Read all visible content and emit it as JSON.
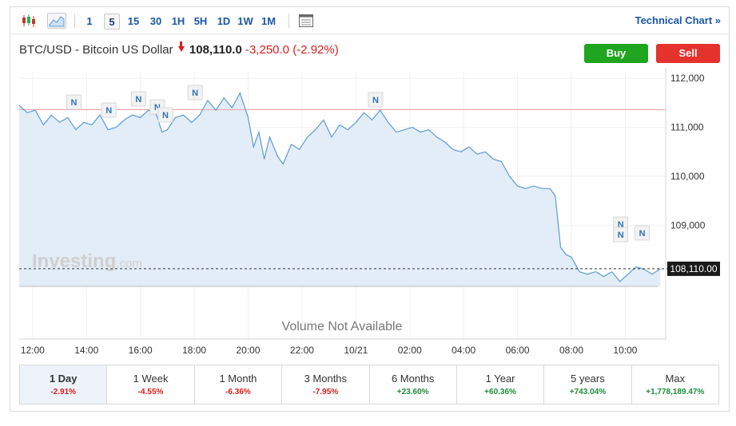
{
  "toolbar": {
    "timeframes": [
      "1",
      "5",
      "15",
      "30",
      "1H",
      "5H",
      "1D",
      "1W",
      "1M"
    ],
    "active_timeframe": "5",
    "technical_chart_label": "Technical Chart »",
    "icons": [
      "candlestick-icon",
      "area-chart-icon",
      "table-icon"
    ]
  },
  "header": {
    "instrument": "BTC/USD - Bitcoin US Dollar",
    "price": "108,110.0",
    "change": "-3,250.0",
    "change_pct": "(-2.92%)",
    "buy_label": "Buy",
    "sell_label": "Sell"
  },
  "watermark": {
    "brand": "Investing",
    "suffix": ".com"
  },
  "volume_note": "Volume Not Available",
  "colors": {
    "line": "#5b9bd5",
    "fill": "#e3edf7",
    "buy": "#1fa51f",
    "sell": "#e5322d",
    "down": "#d91c1c",
    "up": "#1d8c3a",
    "refline": "#f2a0a0"
  },
  "chart_data": {
    "type": "area",
    "ylim": [
      107750,
      112150
    ],
    "y_ticks": [
      "112,000",
      "111,000",
      "110,000",
      "109,000"
    ],
    "y_tick_values": [
      112000,
      111000,
      110000,
      109000
    ],
    "x_ticks": [
      "12:00",
      "14:00",
      "16:00",
      "18:00",
      "20:00",
      "22:00",
      "10/21",
      "02:00",
      "04:00",
      "06:00",
      "08:00",
      "10:00"
    ],
    "x_tick_values": [
      12,
      14,
      16,
      18,
      20,
      22,
      24,
      26,
      28,
      30,
      32,
      34
    ],
    "xlim": [
      11.5,
      35.5
    ],
    "previous_close": 111360,
    "last_price": 108110,
    "last_price_label": "108,110.00",
    "series": [
      {
        "values": [
          [
            11.5,
            111450
          ],
          [
            11.8,
            111300
          ],
          [
            12.1,
            111350
          ],
          [
            12.4,
            111050
          ],
          [
            12.7,
            111250
          ],
          [
            13.0,
            111100
          ],
          [
            13.3,
            111200
          ],
          [
            13.6,
            110950
          ],
          [
            13.9,
            111100
          ],
          [
            14.2,
            111050
          ],
          [
            14.5,
            111250
          ],
          [
            14.8,
            110950
          ],
          [
            15.1,
            111000
          ],
          [
            15.4,
            111150
          ],
          [
            15.7,
            111250
          ],
          [
            16.0,
            111200
          ],
          [
            16.3,
            111350
          ],
          [
            16.6,
            111250
          ],
          [
            16.8,
            110900
          ],
          [
            17.0,
            110950
          ],
          [
            17.3,
            111200
          ],
          [
            17.6,
            111250
          ],
          [
            17.9,
            111100
          ],
          [
            18.2,
            111250
          ],
          [
            18.5,
            111550
          ],
          [
            18.8,
            111350
          ],
          [
            19.1,
            111600
          ],
          [
            19.4,
            111400
          ],
          [
            19.7,
            111700
          ],
          [
            20.0,
            111200
          ],
          [
            20.2,
            110600
          ],
          [
            20.4,
            110900
          ],
          [
            20.6,
            110350
          ],
          [
            20.8,
            110800
          ],
          [
            21.1,
            110400
          ],
          [
            21.3,
            110250
          ],
          [
            21.6,
            110650
          ],
          [
            21.9,
            110550
          ],
          [
            22.2,
            110800
          ],
          [
            22.5,
            110950
          ],
          [
            22.8,
            111150
          ],
          [
            23.1,
            110800
          ],
          [
            23.4,
            111050
          ],
          [
            23.7,
            110950
          ],
          [
            24.0,
            111100
          ],
          [
            24.3,
            111300
          ],
          [
            24.6,
            111150
          ],
          [
            24.9,
            111350
          ],
          [
            25.2,
            111100
          ],
          [
            25.5,
            110900
          ],
          [
            25.8,
            110950
          ],
          [
            26.1,
            111000
          ],
          [
            26.4,
            110900
          ],
          [
            26.7,
            110950
          ],
          [
            27.0,
            110800
          ],
          [
            27.3,
            110700
          ],
          [
            27.6,
            110550
          ],
          [
            27.9,
            110500
          ],
          [
            28.2,
            110600
          ],
          [
            28.5,
            110450
          ],
          [
            28.8,
            110500
          ],
          [
            29.1,
            110350
          ],
          [
            29.4,
            110300
          ],
          [
            29.7,
            110000
          ],
          [
            30.0,
            109800
          ],
          [
            30.3,
            109750
          ],
          [
            30.6,
            109800
          ],
          [
            30.9,
            109750
          ],
          [
            31.2,
            109750
          ],
          [
            31.4,
            109600
          ],
          [
            31.6,
            108550
          ],
          [
            31.8,
            108400
          ],
          [
            32.0,
            108350
          ],
          [
            32.3,
            108050
          ],
          [
            32.6,
            108000
          ],
          [
            32.9,
            108050
          ],
          [
            33.2,
            107950
          ],
          [
            33.5,
            108050
          ],
          [
            33.8,
            107850
          ],
          [
            34.1,
            108000
          ],
          [
            34.4,
            108150
          ],
          [
            34.7,
            108100
          ],
          [
            35.0,
            108000
          ],
          [
            35.3,
            108110
          ]
        ]
      }
    ],
    "news_markers": [
      {
        "label": "N",
        "x": 13.5
      },
      {
        "label": "N",
        "x": 14.8
      },
      {
        "label": "N",
        "x": 15.9
      },
      {
        "label": "N",
        "x": 16.6
      },
      {
        "label": "N",
        "x": 16.9
      },
      {
        "label": "N",
        "x": 18.0
      },
      {
        "label": "N",
        "x": 24.7
      },
      {
        "label": "N",
        "x": 33.8
      },
      {
        "label": "N",
        "x": 33.8
      },
      {
        "label": "N",
        "x": 34.6
      }
    ]
  },
  "periods": [
    {
      "label": "1 Day",
      "value": "-2.91%",
      "sign": "neg",
      "active": true
    },
    {
      "label": "1 Week",
      "value": "-4.55%",
      "sign": "neg"
    },
    {
      "label": "1 Month",
      "value": "-6.36%",
      "sign": "neg"
    },
    {
      "label": "3 Months",
      "value": "-7.95%",
      "sign": "neg"
    },
    {
      "label": "6 Months",
      "value": "+23.60%",
      "sign": "pos"
    },
    {
      "label": "1 Year",
      "value": "+60.36%",
      "sign": "pos"
    },
    {
      "label": "5 years",
      "value": "+743.04%",
      "sign": "pos"
    },
    {
      "label": "Max",
      "value": "+1,778,189.47%",
      "sign": "pos"
    }
  ]
}
